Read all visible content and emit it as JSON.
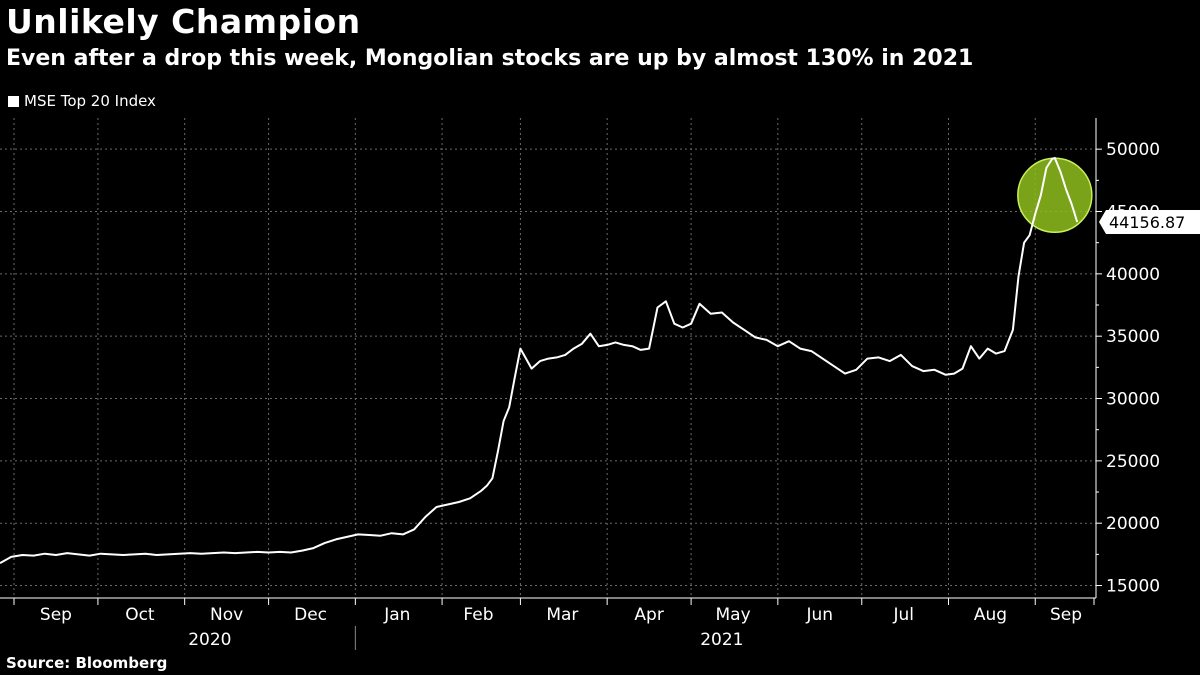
{
  "title": "Unlikely Champion",
  "subtitle": "Even after a drop this week, Mongolian stocks are up by almost 130% in 2021",
  "source": "Source: Bloomberg",
  "colors": {
    "background": "#000000",
    "line": "#ffffff",
    "highlight_fill": "#8fbf1e",
    "highlight_stroke": "#c8f05a",
    "grid": "#6a6a6a"
  },
  "chart_data": {
    "type": "line",
    "title": "Unlikely Champion",
    "subtitle": "Even after a drop this week, Mongolian stocks are up by almost 130% in 2021",
    "xlabel": "",
    "ylabel": "",
    "ylim": [
      14000,
      52500
    ],
    "yticks": [
      15000,
      20000,
      25000,
      30000,
      35000,
      40000,
      45000,
      50000
    ],
    "ytick_labels": [
      "15000",
      "20000",
      "25000",
      "30000",
      "35000",
      "40000",
      "45000",
      "50000"
    ],
    "xlim": [
      "2020-08-27",
      "2021-09-22"
    ],
    "month_ticks": [
      "2020-09-01",
      "2020-10-01",
      "2020-11-01",
      "2020-12-01",
      "2021-01-01",
      "2021-02-01",
      "2021-03-01",
      "2021-04-01",
      "2021-05-01",
      "2021-06-01",
      "2021-07-01",
      "2021-08-01",
      "2021-09-01",
      "2021-09-22"
    ],
    "month_labels": [
      {
        "label": "Sep",
        "date": "2020-09-16"
      },
      {
        "label": "Oct",
        "date": "2020-10-16"
      },
      {
        "label": "Nov",
        "date": "2020-11-16"
      },
      {
        "label": "Dec",
        "date": "2020-12-16"
      },
      {
        "label": "Jan",
        "date": "2021-01-16"
      },
      {
        "label": "Feb",
        "date": "2021-02-14"
      },
      {
        "label": "Mar",
        "date": "2021-03-16"
      },
      {
        "label": "Apr",
        "date": "2021-04-16"
      },
      {
        "label": "May",
        "date": "2021-05-16"
      },
      {
        "label": "Jun",
        "date": "2021-06-16"
      },
      {
        "label": "Jul",
        "date": "2021-07-16"
      },
      {
        "label": "Aug",
        "date": "2021-08-16"
      },
      {
        "label": "Sep",
        "date": "2021-09-12"
      }
    ],
    "year_labels": [
      {
        "label": "2020",
        "date": "2020-11-10"
      },
      {
        "label": "2021",
        "date": "2021-05-12"
      }
    ],
    "year_divider": "2021-01-01",
    "grid": true,
    "legend_position": "top-left",
    "last_value_label": "44156.87",
    "highlight": {
      "center": {
        "x": "2021-09-08",
        "y": 46300
      },
      "note": "recent drop highlighted with green circle"
    },
    "series": [
      {
        "name": "MSE Top 20 Index",
        "x": [
          "2020-08-27",
          "2020-08-31",
          "2020-09-04",
          "2020-09-08",
          "2020-09-12",
          "2020-09-16",
          "2020-09-20",
          "2020-09-24",
          "2020-09-28",
          "2020-10-02",
          "2020-10-06",
          "2020-10-10",
          "2020-10-14",
          "2020-10-18",
          "2020-10-22",
          "2020-10-26",
          "2020-10-30",
          "2020-11-03",
          "2020-11-07",
          "2020-11-11",
          "2020-11-15",
          "2020-11-19",
          "2020-11-23",
          "2020-11-27",
          "2020-12-01",
          "2020-12-05",
          "2020-12-09",
          "2020-12-13",
          "2020-12-17",
          "2020-12-21",
          "2020-12-25",
          "2020-12-29",
          "2021-01-02",
          "2021-01-06",
          "2021-01-10",
          "2021-01-14",
          "2021-01-18",
          "2021-01-22",
          "2021-01-26",
          "2021-01-30",
          "2021-02-03",
          "2021-02-07",
          "2021-02-11",
          "2021-02-15",
          "2021-02-17",
          "2021-02-19",
          "2021-02-21",
          "2021-02-23",
          "2021-02-25",
          "2021-02-27",
          "2021-03-01",
          "2021-03-03",
          "2021-03-05",
          "2021-03-08",
          "2021-03-11",
          "2021-03-14",
          "2021-03-17",
          "2021-03-20",
          "2021-03-23",
          "2021-03-26",
          "2021-03-29",
          "2021-04-01",
          "2021-04-04",
          "2021-04-07",
          "2021-04-10",
          "2021-04-13",
          "2021-04-16",
          "2021-04-19",
          "2021-04-22",
          "2021-04-25",
          "2021-04-28",
          "2021-05-01",
          "2021-05-04",
          "2021-05-08",
          "2021-05-12",
          "2021-05-16",
          "2021-05-20",
          "2021-05-24",
          "2021-05-28",
          "2021-06-01",
          "2021-06-05",
          "2021-06-09",
          "2021-06-13",
          "2021-06-17",
          "2021-06-21",
          "2021-06-25",
          "2021-06-29",
          "2021-07-03",
          "2021-07-07",
          "2021-07-11",
          "2021-07-15",
          "2021-07-19",
          "2021-07-23",
          "2021-07-27",
          "2021-07-31",
          "2021-08-03",
          "2021-08-06",
          "2021-08-09",
          "2021-08-12",
          "2021-08-15",
          "2021-08-18",
          "2021-08-21",
          "2021-08-24",
          "2021-08-26",
          "2021-08-28",
          "2021-08-30",
          "2021-09-01",
          "2021-09-03",
          "2021-09-05",
          "2021-09-07",
          "2021-09-08",
          "2021-09-10",
          "2021-09-12",
          "2021-09-14",
          "2021-09-16"
        ],
        "values": [
          16800,
          17300,
          17450,
          17400,
          17550,
          17450,
          17600,
          17500,
          17400,
          17550,
          17500,
          17450,
          17500,
          17550,
          17450,
          17500,
          17550,
          17600,
          17550,
          17600,
          17650,
          17600,
          17650,
          17700,
          17650,
          17700,
          17650,
          17800,
          18000,
          18400,
          18700,
          18900,
          19100,
          19050,
          19000,
          19200,
          19100,
          19500,
          20500,
          21300,
          21500,
          21700,
          22000,
          22600,
          23000,
          23600,
          25800,
          28200,
          29300,
          31700,
          34000,
          33200,
          32400,
          33000,
          33200,
          33300,
          33500,
          34000,
          34400,
          35200,
          34200,
          34300,
          34500,
          34300,
          34200,
          33900,
          34000,
          37300,
          37800,
          36000,
          35700,
          36000,
          37600,
          36800,
          36900,
          36100,
          35500,
          34900,
          34700,
          34200,
          34600,
          34000,
          33800,
          33200,
          32600,
          32000,
          32300,
          33200,
          33300,
          33000,
          33500,
          32600,
          32200,
          32300,
          31900,
          32000,
          32400,
          34200,
          33200,
          34000,
          33600,
          33800,
          35500,
          39800,
          42500,
          43100,
          44800,
          46300,
          48500,
          49200,
          49300,
          48200,
          46800,
          45600,
          44156.87
        ]
      }
    ]
  }
}
